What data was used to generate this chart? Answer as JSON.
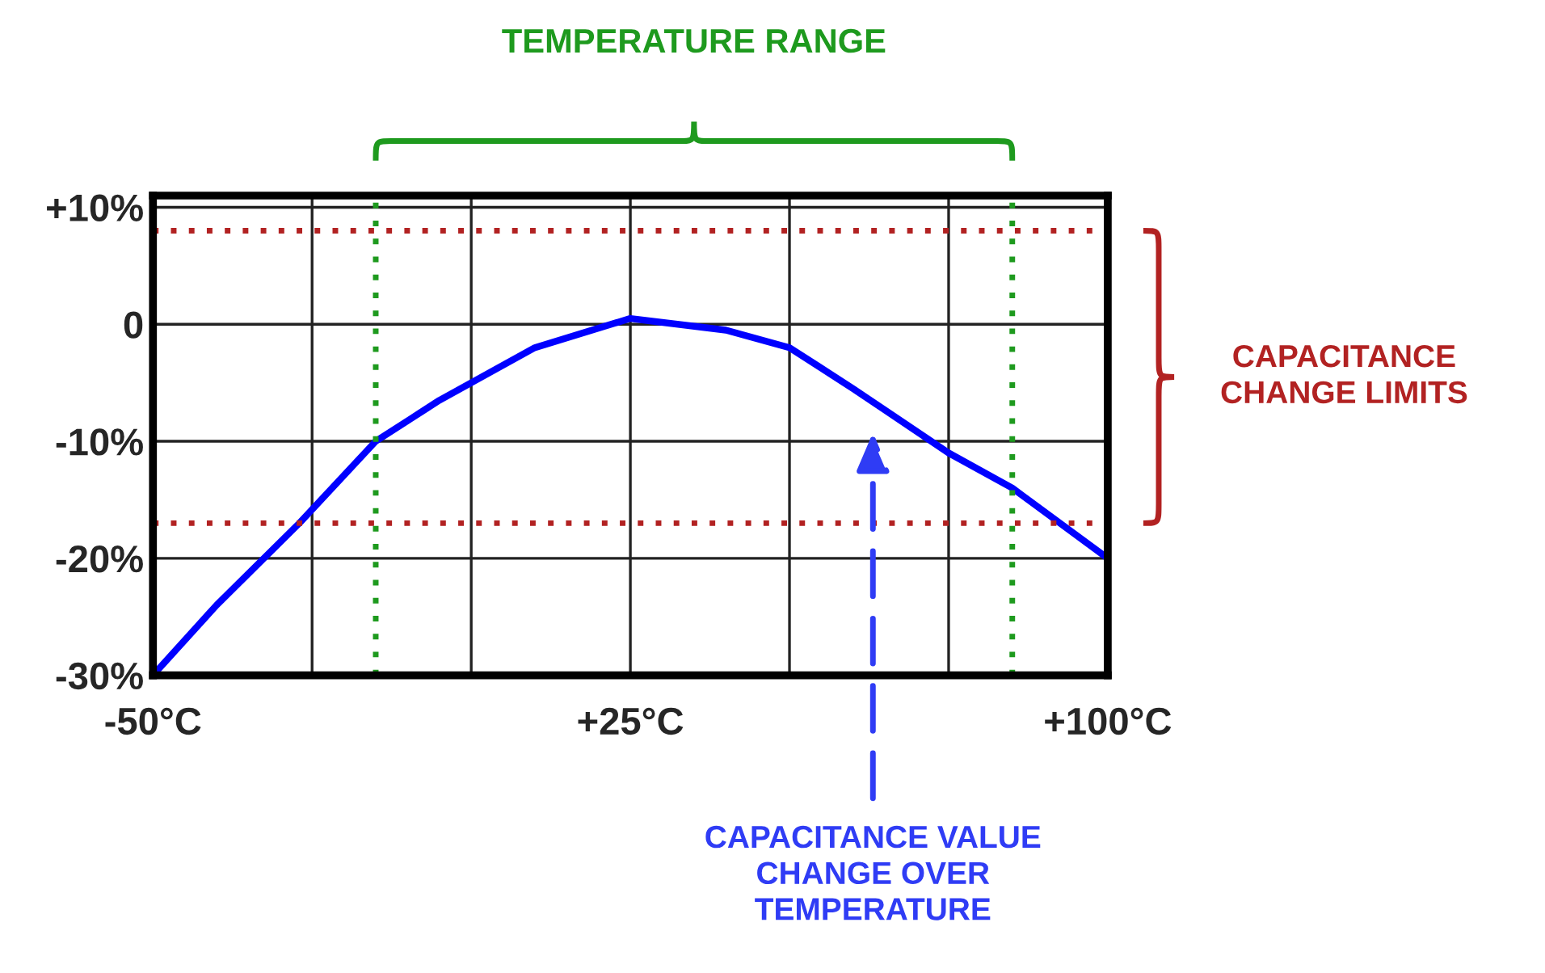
{
  "chart_data": {
    "type": "line",
    "x": [
      -50,
      -40,
      -27,
      -15,
      -5,
      0,
      10,
      25,
      40,
      50,
      60,
      75,
      85,
      100
    ],
    "series": [
      {
        "color": "#0000ff",
        "values": [
          -30,
          -24,
          -17,
          -10,
          -6.5,
          -5,
          -2,
          0.5,
          -0.5,
          -2,
          -5.5,
          -11,
          -14,
          -20
        ]
      }
    ],
    "xlim": [
      -50,
      100
    ],
    "xticks": [
      {
        "value": -50,
        "label": "-50°C"
      },
      {
        "value": -25,
        "label": null
      },
      {
        "value": 0,
        "label": null
      },
      {
        "value": 25,
        "label": "+25°C"
      },
      {
        "value": 50,
        "label": null
      },
      {
        "value": 75,
        "label": null
      },
      {
        "value": 100,
        "label": "+100°C"
      }
    ],
    "ylim": [
      -30,
      11
    ],
    "yticks": [
      {
        "value": 10,
        "label": "+10%"
      },
      0,
      {
        "value": -10,
        "label": "-10%"
      },
      {
        "value": -20,
        "label": "-20%"
      },
      {
        "value": -30,
        "label": "-30%"
      }
    ],
    "grid": true,
    "ref_lines": [
      {
        "axis": "y",
        "value": 8,
        "color": "#b22222",
        "line_style": "dotted"
      },
      {
        "axis": "y",
        "value": -17,
        "color": "#b22222",
        "line_style": "dotted"
      },
      {
        "axis": "x",
        "value": -15,
        "color": "#1e9a1e",
        "line_style": "dotted"
      },
      {
        "axis": "x",
        "value": 85,
        "color": "#1e9a1e",
        "line_style": "dotted"
      }
    ],
    "annotations": [
      "TEMPERATURE RANGE",
      "CAPACITANCE\nCHANGE LIMITS",
      "CAPACITANCE VALUE\nCHANGE OVER\nTEMPERATURE"
    ]
  }
}
